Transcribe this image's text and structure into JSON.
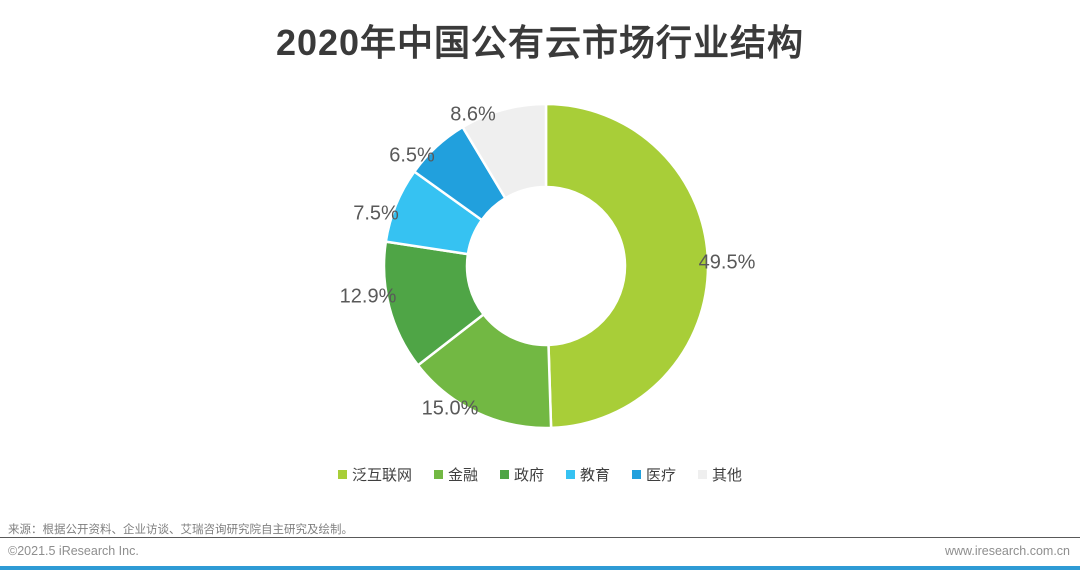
{
  "title": "2020年中国公有云市场行业结构",
  "chart_data": {
    "type": "pie",
    "subtype": "donut",
    "title": "2020年中国公有云市场行业结构",
    "start_angle_deg": 0,
    "direction": "clockwise",
    "legend_position": "bottom",
    "value_label_color": "#595959",
    "series": [
      {
        "label": "泛互联网",
        "value": 49.5,
        "display": "49.5%",
        "color": "#A8CE38"
      },
      {
        "label": "金融",
        "value": 15.0,
        "display": "15.0%",
        "color": "#72B843"
      },
      {
        "label": "政府",
        "value": 12.9,
        "display": "12.9%",
        "color": "#4FA546"
      },
      {
        "label": "教育",
        "value": 7.5,
        "display": "7.5%",
        "color": "#36C2F2"
      },
      {
        "label": "医疗",
        "value": 6.5,
        "display": "6.5%",
        "color": "#21A0DD"
      },
      {
        "label": "其他",
        "value": 8.6,
        "display": "8.6%",
        "color": "#EFEFEF"
      }
    ]
  },
  "footer": {
    "source": "来源：根据公开资料、企业访谈、艾瑞咨询研究院自主研究及绘制。",
    "copyright": "©2021.5 iResearch Inc.",
    "website": "www.iresearch.com.cn"
  },
  "accent_color": "#2E9BD5"
}
